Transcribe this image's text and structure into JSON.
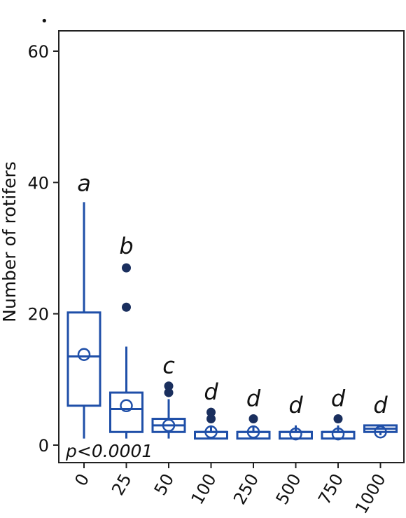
{
  "chart_data": {
    "type": "box",
    "title": "",
    "xlabel": "",
    "ylabel": "Number of rotifers",
    "ylim": [
      -3,
      63
    ],
    "yticks": [
      "0",
      "20",
      "40",
      "60"
    ],
    "categories": [
      "0",
      "25",
      "50",
      "100",
      "250",
      "500",
      "750",
      "1000"
    ],
    "boxes": [
      {
        "category": "0",
        "min": 1,
        "q1": 6,
        "median": 13.5,
        "q3": 20.2,
        "max": 37,
        "mean": 13.8,
        "outliers": [],
        "letter": "a"
      },
      {
        "category": "25",
        "min": 1,
        "q1": 2,
        "median": 5.5,
        "q3": 8,
        "max": 15,
        "mean": 6,
        "outliers": [
          21,
          27
        ],
        "letter": "b"
      },
      {
        "category": "50",
        "min": 1,
        "q1": 2,
        "median": 3,
        "q3": 4,
        "max": 7,
        "mean": 3,
        "outliers": [
          8,
          9
        ],
        "letter": "c"
      },
      {
        "category": "100",
        "min": 1,
        "q1": 1,
        "median": 2,
        "q3": 2,
        "max": 3,
        "mean": 2,
        "outliers": [
          4,
          5
        ],
        "letter": "d"
      },
      {
        "category": "250",
        "min": 1,
        "q1": 1,
        "median": 2,
        "q3": 2,
        "max": 3,
        "mean": 2,
        "outliers": [
          4
        ],
        "letter": "d"
      },
      {
        "category": "500",
        "min": 1,
        "q1": 1,
        "median": 2,
        "q3": 2,
        "max": 3,
        "mean": 1.7,
        "outliers": [],
        "letter": "d"
      },
      {
        "category": "750",
        "min": 1,
        "q1": 1,
        "median": 2,
        "q3": 2,
        "max": 3,
        "mean": 1.7,
        "outliers": [
          4
        ],
        "letter": "d"
      },
      {
        "category": "1000",
        "min": 1.5,
        "q1": 2,
        "median": 2.5,
        "q3": 3,
        "max": 3,
        "mean": 2,
        "outliers": [],
        "letter": "d"
      }
    ],
    "annotation": "p<0.0001",
    "colors": {
      "box": "#1f4fa8",
      "outlier": "#1a2f5e",
      "text": "#111111"
    }
  }
}
